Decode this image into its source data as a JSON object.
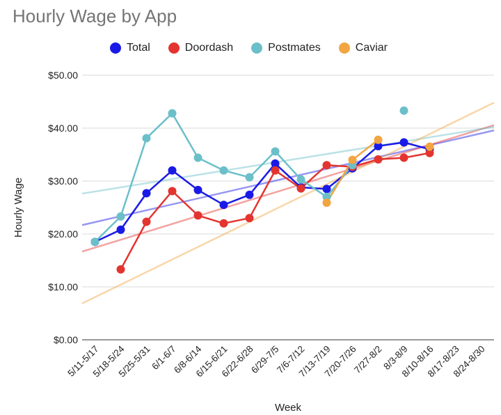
{
  "chart_data": {
    "type": "line",
    "title": "Hourly Wage by App",
    "xlabel": "Week",
    "ylabel": "Hourly Wage",
    "ylim": [
      0,
      50
    ],
    "yticks": [
      0,
      10,
      20,
      30,
      40,
      50
    ],
    "ytick_labels": [
      "$0.00",
      "$10.00",
      "$20.00",
      "$30.00",
      "$40.00",
      "$50.00"
    ],
    "grid": true,
    "legend_position": "top",
    "categories": [
      "5/11-5/17",
      "5/18-5/24",
      "5/25-5/31",
      "6/1-6/7",
      "6/8-6/14",
      "6/15-6/21",
      "6/22-6/28",
      "6/29-7/5",
      "7/6-7/12",
      "7/13-7/19",
      "7/20-7/26",
      "7/27-8/2",
      "8/3-8/9",
      "8/10-8/16",
      "8/17-8/23",
      "8/24-8/30"
    ],
    "series": [
      {
        "name": "Total",
        "color": "#1a1ae6",
        "values": [
          18.5,
          20.8,
          27.7,
          32.0,
          28.3,
          25.5,
          27.4,
          33.3,
          28.8,
          28.5,
          32.4,
          36.6,
          37.3,
          36.0,
          null,
          null
        ]
      },
      {
        "name": "Doordash",
        "color": "#e3342f",
        "values": [
          null,
          13.3,
          22.3,
          28.1,
          23.5,
          22.0,
          23.0,
          32.0,
          28.6,
          33.0,
          32.7,
          34.1,
          34.4,
          35.3,
          null,
          null
        ]
      },
      {
        "name": "Postmates",
        "color": "#6bbfc9",
        "values": [
          18.5,
          23.3,
          38.1,
          42.8,
          34.4,
          32.0,
          30.7,
          35.6,
          30.3,
          27.0,
          33.0,
          null,
          43.3,
          null,
          null,
          null
        ]
      },
      {
        "name": "Caviar",
        "color": "#f2a541",
        "values": [
          null,
          null,
          null,
          null,
          null,
          null,
          null,
          null,
          null,
          25.9,
          34.0,
          37.8,
          null,
          36.5,
          null,
          null
        ]
      }
    ]
  }
}
